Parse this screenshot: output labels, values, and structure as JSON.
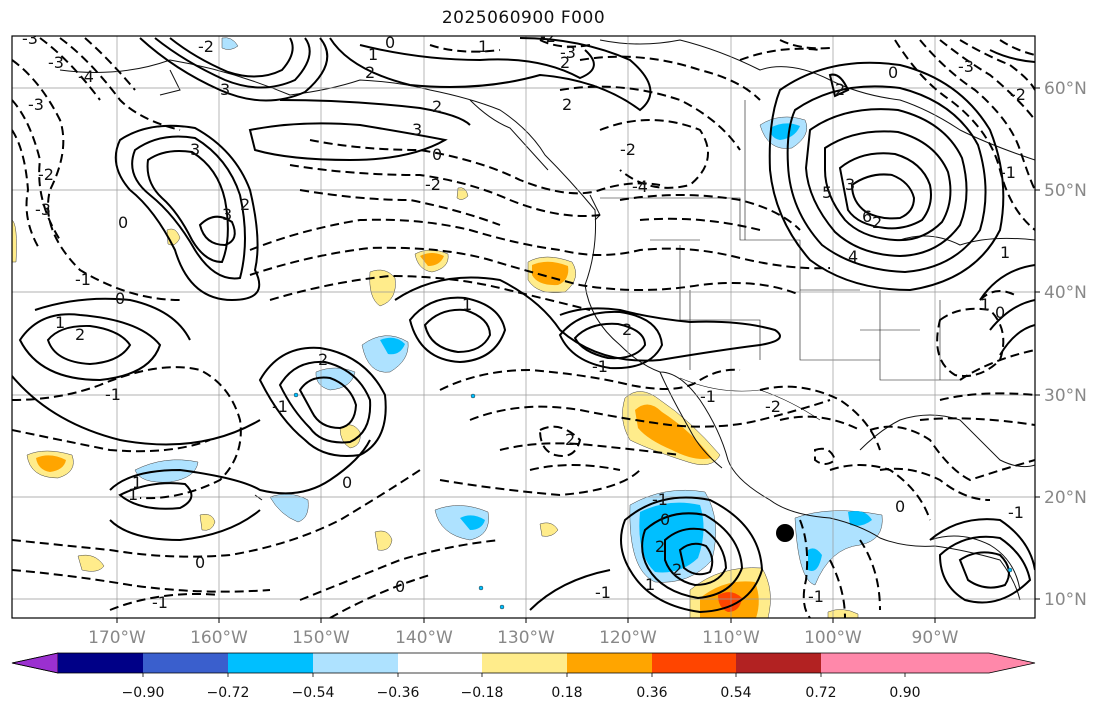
{
  "title": "2025060900 F000",
  "map": {
    "lon_labels": [
      "170°W",
      "160°W",
      "150°W",
      "140°W",
      "130°W",
      "120°W",
      "110°W",
      "100°W",
      "90°W"
    ],
    "lat_labels": [
      "60°N",
      "50°N",
      "40°N",
      "30°N",
      "20°N",
      "10°N"
    ],
    "contour_labels": [
      "-3",
      "-3",
      "-3",
      "-4",
      "-3",
      "-2",
      "-1",
      "0",
      "0",
      "1",
      "2",
      "2",
      "3",
      "3",
      "3",
      "-2",
      "0",
      "1",
      "2",
      "1",
      "2",
      "3",
      "2",
      "2",
      "-2",
      "-2",
      "0",
      "-2",
      "-3",
      "-4",
      "-3",
      "-2",
      "-1",
      "0",
      "0",
      "1",
      "2",
      "-2",
      "-1",
      "0",
      "2",
      "2",
      "1",
      "2",
      "-1",
      "-1",
      "0",
      "1",
      "-1",
      "-1",
      "-1",
      "-1",
      "-1",
      "0",
      "0",
      "1",
      "-1",
      "0",
      "3",
      "2",
      "4",
      "5",
      "6",
      "2",
      "2",
      "1",
      "1"
    ],
    "marker": "black-dot"
  },
  "colorbar": {
    "tick_labels": [
      "−0.90",
      "−0.72",
      "−0.54",
      "−0.36",
      "−0.18",
      "0.18",
      "0.36",
      "0.54",
      "0.72",
      "0.90"
    ],
    "colors": [
      "#9b30d0",
      "#000087",
      "#3a5fcd",
      "#00bfff",
      "#aee2ff",
      "#ffffff",
      "#ffec8b",
      "#ffa500",
      "#ff4500",
      "#b22222",
      "#ff88aa"
    ]
  }
}
